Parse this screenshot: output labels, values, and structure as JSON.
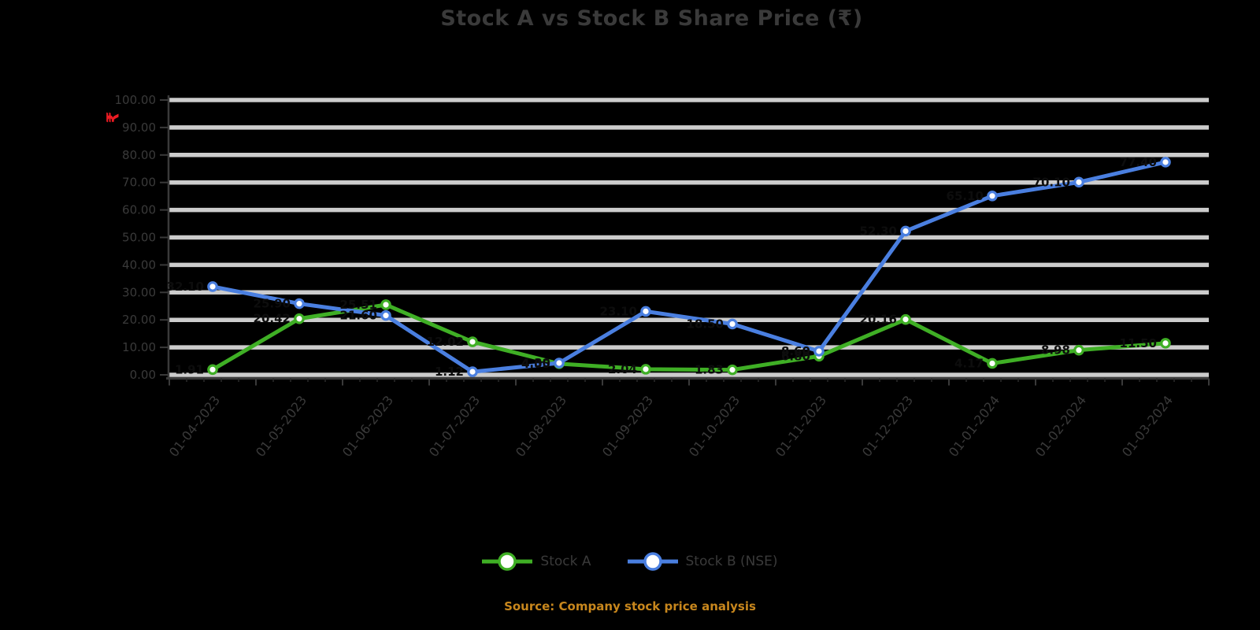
{
  "title": "Stock A vs Stock B Share Price (₹)",
  "y_axis": {
    "title": "₹",
    "labels": [
      "0.00",
      "10.00",
      "20.00",
      "30.00",
      "40.00",
      "50.00",
      "60.00",
      "70.00",
      "80.00",
      "90.00",
      "100.00"
    ]
  },
  "x_axis": {
    "categories": [
      "01-04-2023",
      "01-05-2023",
      "01-06-2023",
      "01-07-2023",
      "01-08-2023",
      "01-09-2023",
      "01-10-2023",
      "01-11-2023",
      "01-12-2023",
      "01-01-2024",
      "01-02-2024",
      "01-03-2024"
    ]
  },
  "legend": {
    "items": [
      {
        "label": "Stock A",
        "color": "#3FAF25"
      },
      {
        "label": "Stock B (NSE)",
        "color": "#4A7FE0"
      }
    ]
  },
  "source_note": "Source: Company stock price analysis",
  "colors": {
    "background": "#000000",
    "gridline": "#CCCCCC",
    "axis": "#3A3A3A",
    "text": "#3A3A3A",
    "data_label": "#0D0D0D",
    "y_axis_title": "#EC1B23",
    "source_note": "#C8871D",
    "series_green": "#3FAF25",
    "series_blue": "#4A7FE0"
  },
  "chart_data": {
    "type": "line",
    "title": "Stock A vs Stock B Share Price (₹)",
    "ylabel": "₹",
    "xlabel": "",
    "ylim": [
      0,
      100
    ],
    "ystep": 10,
    "grid": true,
    "legend_position": "bottom",
    "marker": "circle-white-fill",
    "categories": [
      "01-04-2023",
      "01-05-2023",
      "01-06-2023",
      "01-07-2023",
      "01-08-2023",
      "01-09-2023",
      "01-10-2023",
      "01-11-2023",
      "01-12-2023",
      "01-01-2024",
      "01-02-2024",
      "01-03-2024"
    ],
    "series": [
      {
        "name": "Stock A",
        "color": "#3FAF25",
        "values": [
          1.91,
          20.42,
          25.51,
          12.02,
          4.05,
          2.04,
          1.83,
          6.8,
          20.16,
          4.17,
          8.98,
          11.5
        ],
        "labels": [
          "1.91",
          "20.42",
          "25.51",
          "12.02",
          "4.05",
          "2.04",
          "1.83",
          "6.80",
          "20.16",
          "4.17",
          "8.98",
          "11.50"
        ]
      },
      {
        "name": "Stock B (NSE)",
        "color": "#4A7FE0",
        "values": [
          32.1,
          25.9,
          21.6,
          1.12,
          4.3,
          23.1,
          18.5,
          8.6,
          52.3,
          65.1,
          70.1,
          77.4
        ],
        "labels": [
          "32.10",
          "25.90",
          "21.60",
          "1.12",
          "4.30",
          "23.10",
          "18.50",
          "8.60",
          "52.30",
          "65.10",
          "70.10",
          "77.40"
        ]
      }
    ]
  }
}
